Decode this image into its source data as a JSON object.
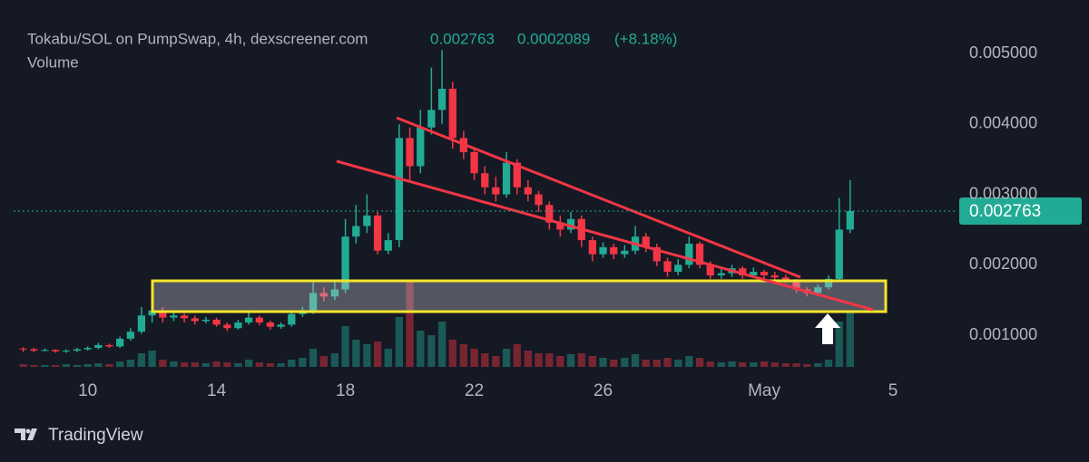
{
  "chart_data": {
    "type": "candlestick",
    "title": "Tokabu/SOL on PumpSwap, 4h, dexscreener.com",
    "change": "0.0002089",
    "change_percent": "(+8.18%)",
    "volume_label": "Volume",
    "brand": "TradingView",
    "up_color": "#22ab94",
    "down_color": "#f23645",
    "x": [
      8,
      8.33,
      8.67,
      9,
      9.33,
      9.67,
      10,
      10.33,
      10.67,
      11,
      11.33,
      11.67,
      12,
      12.33,
      12.67,
      13,
      13.33,
      13.67,
      14,
      14.33,
      14.67,
      15,
      15.33,
      15.67,
      16,
      16.33,
      16.67,
      17,
      17.33,
      17.67,
      18,
      18.33,
      18.67,
      19,
      19.33,
      19.67,
      20,
      20.33,
      20.67,
      21,
      21.33,
      21.67,
      22,
      22.33,
      22.67,
      23,
      23.33,
      23.67,
      24,
      24.33,
      24.67,
      25,
      25.33,
      25.67,
      26,
      26.33,
      26.67,
      27,
      27.33,
      27.67,
      28,
      28.33,
      28.67,
      29,
      29.33,
      29.67,
      30,
      30.33,
      30.67,
      31,
      31.33,
      31.67,
      32,
      32.33,
      32.67,
      33,
      33.33,
      33.67
    ],
    "open": [
      0.00081,
      0.0008,
      0.00078,
      0.00079,
      0.00077,
      0.00078,
      0.0008,
      0.00082,
      0.00086,
      0.00084,
      0.00095,
      0.00105,
      0.00128,
      0.00135,
      0.00125,
      0.00128,
      0.00124,
      0.0012,
      0.00122,
      0.00115,
      0.0011,
      0.00118,
      0.00125,
      0.00118,
      0.00112,
      0.00115,
      0.0013,
      0.00135,
      0.0016,
      0.00155,
      0.00165,
      0.0024,
      0.00255,
      0.0027,
      0.0022,
      0.00235,
      0.0038,
      0.0034,
      0.00395,
      0.0042,
      0.0045,
      0.0038,
      0.0036,
      0.0033,
      0.0031,
      0.003,
      0.00345,
      0.0031,
      0.003,
      0.00285,
      0.0026,
      0.0025,
      0.00265,
      0.00235,
      0.00215,
      0.00225,
      0.00215,
      0.0022,
      0.0024,
      0.00225,
      0.00205,
      0.0019,
      0.002,
      0.0023,
      0.002,
      0.00185,
      0.00188,
      0.00195,
      0.00185,
      0.0019,
      0.00185,
      0.00182,
      0.00178,
      0.00165,
      0.0016,
      0.00168,
      0.0018,
      0.0025
    ],
    "high": [
      0.00083,
      0.00082,
      0.00081,
      0.0008,
      0.0008,
      0.00082,
      0.00084,
      0.00089,
      0.00088,
      0.00098,
      0.0011,
      0.0014,
      0.00152,
      0.0014,
      0.00133,
      0.00131,
      0.00128,
      0.00126,
      0.00125,
      0.00118,
      0.00122,
      0.00135,
      0.00128,
      0.00121,
      0.00118,
      0.00134,
      0.0014,
      0.00175,
      0.00168,
      0.00178,
      0.00265,
      0.00285,
      0.003,
      0.00275,
      0.00245,
      0.004,
      0.00395,
      0.0042,
      0.0048,
      0.00505,
      0.0046,
      0.0039,
      0.00365,
      0.0034,
      0.00325,
      0.0036,
      0.0035,
      0.0032,
      0.00305,
      0.0029,
      0.0027,
      0.00275,
      0.0027,
      0.0024,
      0.00232,
      0.0023,
      0.00228,
      0.00255,
      0.00245,
      0.0023,
      0.0021,
      0.00208,
      0.0024,
      0.00233,
      0.00205,
      0.00195,
      0.002,
      0.00198,
      0.00196,
      0.00193,
      0.0019,
      0.00186,
      0.0018,
      0.00168,
      0.00172,
      0.00185,
      0.00295,
      0.0032
    ],
    "low": [
      0.00076,
      0.00076,
      0.00077,
      0.00075,
      0.00075,
      0.00076,
      0.00078,
      0.0008,
      0.00082,
      0.00082,
      0.00092,
      0.00102,
      0.00118,
      0.00118,
      0.0012,
      0.00118,
      0.00115,
      0.00117,
      0.00112,
      0.00106,
      0.00108,
      0.00115,
      0.00114,
      0.00108,
      0.00109,
      0.00112,
      0.00126,
      0.0013,
      0.00148,
      0.0015,
      0.0016,
      0.0023,
      0.00245,
      0.00215,
      0.00215,
      0.00225,
      0.0032,
      0.0033,
      0.00385,
      0.004,
      0.00365,
      0.0035,
      0.0032,
      0.003,
      0.0029,
      0.00295,
      0.003,
      0.0029,
      0.00275,
      0.0025,
      0.0024,
      0.00245,
      0.00225,
      0.00205,
      0.0021,
      0.00208,
      0.0021,
      0.00215,
      0.00218,
      0.00198,
      0.00183,
      0.00185,
      0.00195,
      0.00195,
      0.0018,
      0.0018,
      0.00183,
      0.0018,
      0.00182,
      0.0018,
      0.00178,
      0.00174,
      0.0016,
      0.00155,
      0.00158,
      0.00165,
      0.00178,
      0.00245
    ],
    "close": [
      0.0008,
      0.00078,
      0.00079,
      0.00077,
      0.00078,
      0.0008,
      0.00082,
      0.00086,
      0.00084,
      0.00095,
      0.00105,
      0.00128,
      0.00135,
      0.00125,
      0.00128,
      0.00124,
      0.0012,
      0.00122,
      0.00115,
      0.0011,
      0.00118,
      0.00125,
      0.00118,
      0.00112,
      0.00115,
      0.0013,
      0.00135,
      0.0016,
      0.00155,
      0.00165,
      0.0024,
      0.00255,
      0.0027,
      0.0022,
      0.00235,
      0.0038,
      0.0034,
      0.00395,
      0.0042,
      0.0045,
      0.0038,
      0.0036,
      0.0033,
      0.0031,
      0.003,
      0.00345,
      0.0031,
      0.003,
      0.00285,
      0.0026,
      0.0025,
      0.00265,
      0.00235,
      0.00215,
      0.00225,
      0.00215,
      0.0022,
      0.0024,
      0.00225,
      0.00205,
      0.0019,
      0.002,
      0.0023,
      0.002,
      0.00185,
      0.00188,
      0.00195,
      0.00185,
      0.0019,
      0.00185,
      0.00182,
      0.00178,
      0.00165,
      0.0016,
      0.00168,
      0.0018,
      0.0025,
      0.002763
    ],
    "volume": [
      3,
      2,
      2,
      2,
      3,
      2,
      3,
      4,
      3,
      6,
      8,
      15,
      18,
      8,
      6,
      5,
      5,
      4,
      6,
      5,
      4,
      8,
      5,
      4,
      4,
      8,
      10,
      20,
      12,
      15,
      45,
      30,
      25,
      28,
      20,
      55,
      95,
      40,
      35,
      50,
      30,
      25,
      20,
      15,
      12,
      20,
      25,
      18,
      15,
      15,
      12,
      14,
      15,
      12,
      10,
      8,
      10,
      14,
      8,
      8,
      10,
      8,
      12,
      10,
      6,
      5,
      6,
      5,
      5,
      6,
      5,
      4,
      4,
      3,
      4,
      8,
      50,
      60
    ],
    "xlim": [
      7.7,
      37.0
    ],
    "xticks": [
      10,
      14,
      18,
      22,
      26,
      {
        "value": 31,
        "label": "May"
      },
      {
        "value": 35,
        "label": "5"
      }
    ],
    "ylim": [
      0.00055,
      0.0054
    ],
    "yticks": [
      {
        "value": 0.001,
        "label": "0.001000"
      },
      {
        "value": 0.002,
        "label": "0.002000"
      },
      {
        "value": 0.003,
        "label": "0.003000"
      },
      {
        "value": 0.004,
        "label": "0.004000"
      },
      {
        "value": 0.005,
        "label": "0.005000"
      }
    ],
    "grid": false
  }
}
